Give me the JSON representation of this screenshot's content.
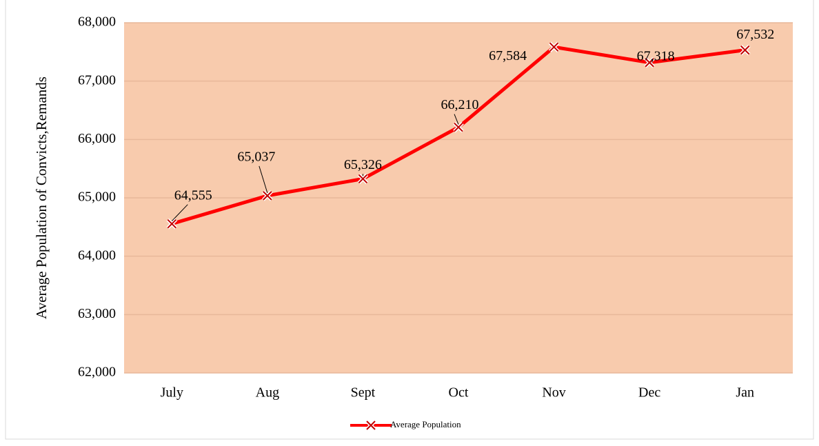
{
  "chart_data": {
    "type": "line",
    "y_label": "Average Population of Convicts,Remands",
    "categories": [
      "July",
      "Aug",
      "Sept",
      "Oct",
      "Nov",
      "Dec",
      "Jan"
    ],
    "series": [
      {
        "name": "Average Population",
        "color": "#ff0000",
        "values": [
          64555,
          65037,
          65326,
          66210,
          67584,
          67318,
          67532
        ],
        "value_labels": [
          "64,555",
          "65,037",
          "65,326",
          "66,210",
          "67,584",
          "67,318",
          "67,532"
        ]
      }
    ],
    "ylim": [
      62000,
      68000
    ],
    "yticks": [
      {
        "value": 62000,
        "label": "62,000"
      },
      {
        "value": 63000,
        "label": "63,000"
      },
      {
        "value": 64000,
        "label": "64,000"
      },
      {
        "value": 65000,
        "label": "65,000"
      },
      {
        "value": 66000,
        "label": "66,000"
      },
      {
        "value": 67000,
        "label": "67,000"
      },
      {
        "value": 68000,
        "label": "68,000"
      }
    ],
    "grid": true,
    "plot_background": "#f8cbad",
    "legend": "bottom"
  }
}
